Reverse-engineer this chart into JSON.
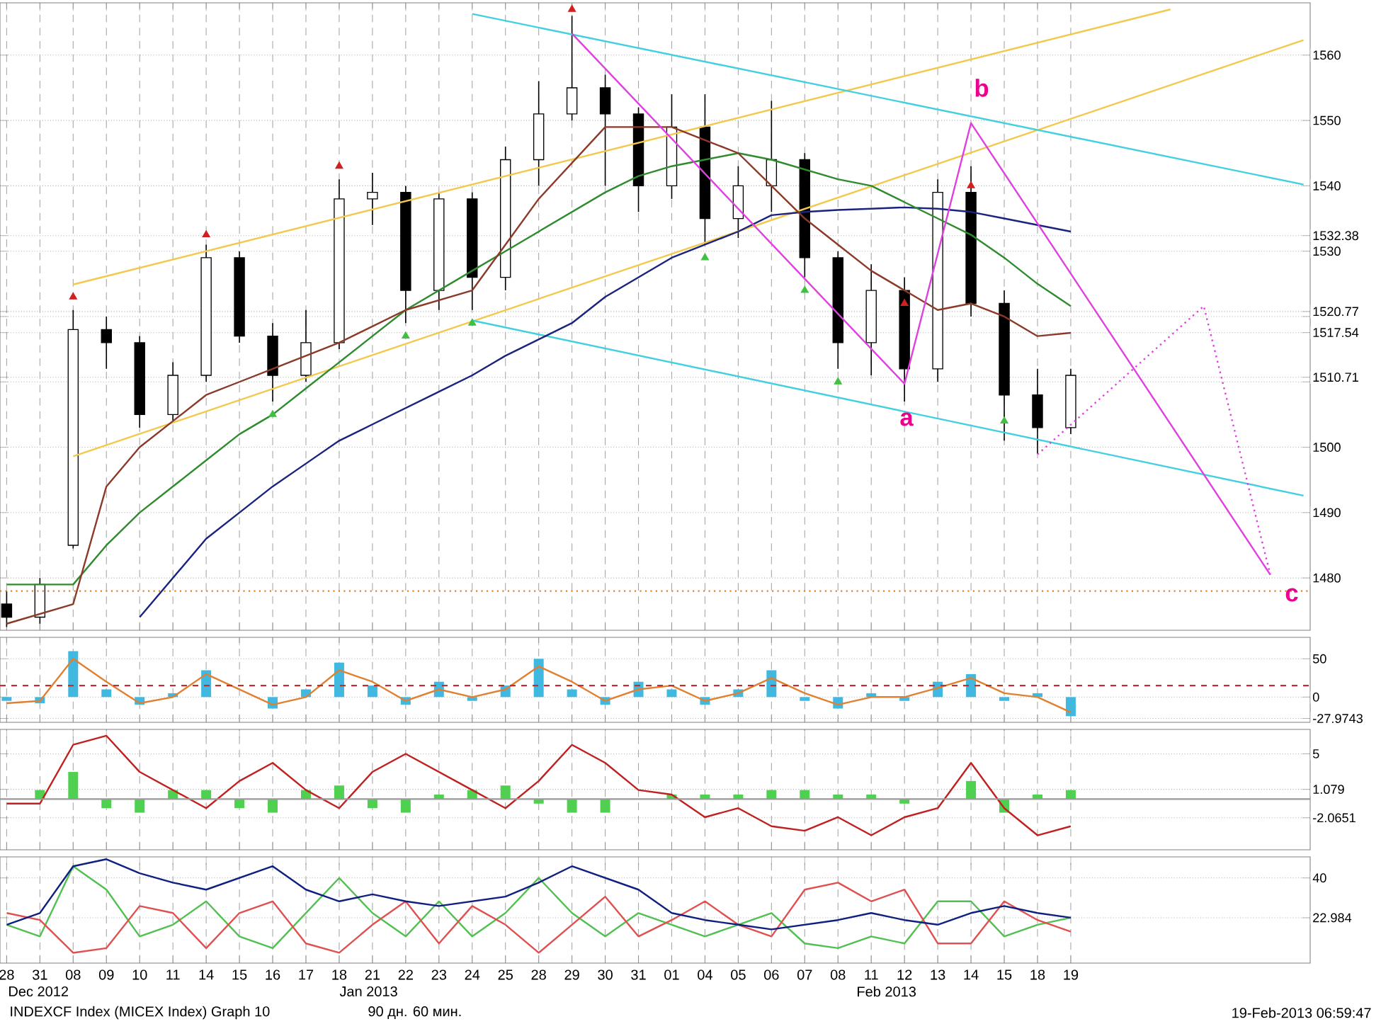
{
  "chart_data": [
    {
      "type": "candlestick",
      "color": "#000000",
      "ylim": [
        1472,
        1568
      ],
      "grid": true,
      "tick_labels": "y",
      "yticks": [
        1480,
        1490,
        1500,
        {
          "value": 1510,
          "label": null
        },
        {
          "value": 1520,
          "label": null
        },
        1530,
        1540,
        1550,
        1560,
        {
          "value": 1532.38,
          "label": "1532.38"
        },
        {
          "value": 1520.77,
          "label": "1520.77"
        },
        {
          "value": 1517.54,
          "label": "1517.54"
        },
        {
          "value": 1510.71,
          "label": "1510.71"
        }
      ],
      "categories": [
        "28",
        "31",
        "08",
        "09",
        "10",
        "11",
        "14",
        "15",
        "16",
        "17",
        "18",
        "21",
        "22",
        "23",
        "24",
        "25",
        "28",
        "29",
        "30",
        "31",
        "01",
        "04",
        "05",
        "06",
        "07",
        "08",
        "11",
        "12",
        "13",
        "14",
        "15",
        "18",
        "19",
        null,
        null,
        null,
        null,
        null,
        null,
        null
      ],
      "ohlc": [
        [
          1476,
          1478,
          1472.5,
          1474
        ],
        [
          1474,
          1480,
          1473,
          1479
        ],
        [
          1485,
          1521,
          1484.5,
          1518
        ],
        [
          1518,
          1520,
          1512,
          1516
        ],
        [
          1516,
          1517,
          1503,
          1505
        ],
        [
          1505,
          1513,
          1504,
          1511
        ],
        [
          1511,
          1531,
          1510,
          1529
        ],
        [
          1529,
          1530,
          1516,
          1517
        ],
        [
          1517,
          1519,
          1507,
          1511
        ],
        [
          1511,
          1521,
          1510,
          1516
        ],
        [
          1516,
          1541,
          1515,
          1538
        ],
        [
          1538,
          1542,
          1534,
          1539
        ],
        [
          1539,
          1540,
          1519,
          1524
        ],
        [
          1524,
          1539,
          1521,
          1538
        ],
        [
          1538,
          1539,
          1521,
          1526
        ],
        [
          1526,
          1546,
          1524,
          1544
        ],
        [
          1544,
          1556,
          1540,
          1551
        ],
        [
          1551,
          1566,
          1550,
          1555
        ],
        [
          1555,
          1557,
          1540,
          1551
        ],
        [
          1551,
          1552,
          1536,
          1540
        ],
        [
          1540,
          1554,
          1538,
          1549
        ],
        [
          1549,
          1554,
          1531,
          1535
        ],
        [
          1535,
          1543,
          1532,
          1540
        ],
        [
          1540,
          1553,
          1536,
          1544
        ],
        [
          1544,
          1545,
          1526,
          1529
        ],
        [
          1529,
          1530,
          1512,
          1516
        ],
        [
          1516,
          1528,
          1511,
          1524
        ],
        [
          1524,
          1526,
          1507,
          1512
        ],
        [
          1512,
          1541,
          1510,
          1539
        ],
        [
          1539,
          1543,
          1520,
          1522
        ],
        [
          1522,
          1524,
          1501,
          1508
        ],
        [
          1508,
          1512,
          1499,
          1503
        ],
        [
          1503,
          1512,
          1502,
          1511
        ],
        null,
        null,
        null,
        null,
        null,
        null,
        null
      ],
      "series": [
        {
          "type": "line",
          "color": "#f2c94c",
          "values": [
            null,
            null,
            1524.9,
            null,
            null,
            null,
            null,
            null,
            null,
            null,
            null,
            null,
            null,
            null,
            null,
            null,
            null,
            null,
            null,
            null,
            null,
            null,
            null,
            null,
            null,
            null,
            null,
            null,
            null,
            null,
            null,
            null,
            null,
            null,
            null,
            1567.0,
            null,
            null,
            null,
            null
          ]
        },
        {
          "type": "line",
          "color": "#f2c94c",
          "values": [
            null,
            null,
            1498.6,
            null,
            null,
            null,
            null,
            null,
            null,
            null,
            null,
            null,
            null,
            null,
            null,
            null,
            null,
            null,
            null,
            null,
            null,
            null,
            null,
            null,
            null,
            null,
            null,
            null,
            null,
            null,
            null,
            null,
            null,
            null,
            null,
            null,
            null,
            null,
            null,
            1562.3
          ]
        },
        {
          "type": "line",
          "color": "#40d0e0",
          "values": [
            null,
            null,
            null,
            null,
            null,
            null,
            null,
            null,
            null,
            null,
            null,
            null,
            null,
            null,
            1566.3,
            null,
            null,
            null,
            null,
            null,
            null,
            null,
            null,
            null,
            null,
            null,
            null,
            null,
            null,
            null,
            null,
            null,
            null,
            null,
            null,
            null,
            null,
            null,
            null,
            1540.2
          ]
        },
        {
          "type": "line",
          "color": "#40d0e0",
          "values": [
            null,
            null,
            null,
            null,
            null,
            null,
            null,
            null,
            null,
            null,
            null,
            null,
            null,
            null,
            1519.4,
            null,
            null,
            null,
            null,
            null,
            null,
            null,
            null,
            null,
            null,
            null,
            null,
            null,
            null,
            null,
            null,
            null,
            null,
            null,
            null,
            null,
            null,
            null,
            null,
            1492.6
          ]
        },
        {
          "type": "line",
          "color": "#1a237e",
          "values": [
            null,
            null,
            null,
            null,
            1474,
            1480,
            1486,
            1490,
            1494,
            1497.5,
            1501,
            1503.5,
            1506,
            1508.5,
            1511,
            1514,
            1516.5,
            1519,
            1523,
            1526,
            1529,
            1531,
            1533,
            1535.5,
            1536,
            1536.3,
            1536.5,
            1536.7,
            1536.5,
            1536,
            1535,
            1534,
            1533,
            null,
            null,
            null,
            null,
            null,
            null,
            null
          ]
        },
        {
          "type": "line",
          "color": "#2e8b2e",
          "values": [
            1479,
            1479,
            1479,
            1485,
            1490,
            1494,
            1498,
            1502,
            1505,
            1509,
            1513,
            1517,
            1521,
            1524,
            1527,
            1530,
            1533,
            1536,
            1539,
            1541.5,
            1543,
            1544,
            1545,
            1544,
            1542.5,
            1541,
            1540,
            1537.5,
            1535,
            1532.5,
            1529,
            1525,
            1521.6,
            null,
            null,
            null,
            null,
            null,
            null,
            null
          ]
        },
        {
          "type": "line",
          "color": "#8b3a2a",
          "values": [
            1473,
            1474.5,
            1476,
            1494,
            1500,
            1504,
            1508,
            1510,
            1512,
            1514,
            1516,
            1518.5,
            1521,
            1522.5,
            1524,
            1531,
            1538,
            1543.5,
            1549,
            1549,
            1549,
            1547,
            1545,
            1540,
            1535,
            1531,
            1527,
            1524,
            1521,
            1522,
            1520,
            1517,
            1517.5,
            null,
            null,
            null,
            null,
            null,
            null,
            null
          ]
        },
        {
          "type": "line",
          "color": "#e040e0",
          "values": [
            null,
            null,
            null,
            null,
            null,
            null,
            null,
            null,
            null,
            null,
            null,
            null,
            null,
            null,
            null,
            null,
            null,
            1563.3,
            null,
            null,
            null,
            null,
            null,
            null,
            null,
            null,
            null,
            1509.7,
            null,
            1549.6,
            null,
            null,
            null,
            null,
            null,
            null,
            null,
            null,
            1480.5,
            null
          ]
        },
        {
          "type": "line",
          "color": "#e040e0",
          "line_style": "dotted",
          "values": [
            null,
            null,
            null,
            null,
            null,
            null,
            null,
            null,
            null,
            null,
            null,
            null,
            null,
            null,
            null,
            null,
            null,
            null,
            null,
            null,
            null,
            null,
            null,
            null,
            null,
            null,
            null,
            null,
            null,
            null,
            null,
            1498.9,
            null,
            null,
            null,
            null,
            1521.6,
            null,
            1480.5,
            null
          ]
        },
        {
          "type": "scatter",
          "marker": "triangle",
          "color": "#d02020",
          "values": [
            null,
            null,
            1523,
            null,
            null,
            null,
            1532.5,
            null,
            null,
            null,
            1543,
            null,
            null,
            null,
            null,
            null,
            null,
            1567,
            null,
            null,
            null,
            null,
            null,
            null,
            null,
            null,
            null,
            1522,
            null,
            1540,
            null,
            null,
            null,
            null,
            null,
            null,
            null,
            null,
            null,
            null
          ]
        },
        {
          "type": "scatter",
          "marker": "triangle",
          "color": "#40c040",
          "values": [
            null,
            null,
            null,
            null,
            null,
            null,
            null,
            null,
            1505,
            null,
            null,
            null,
            1517,
            null,
            1519,
            null,
            null,
            null,
            null,
            null,
            null,
            1529,
            null,
            null,
            1524,
            1510,
            null,
            null,
            null,
            null,
            1504,
            null,
            null,
            null,
            null,
            null,
            null,
            null,
            null,
            null
          ]
        }
      ],
      "ref_lines": [
        {
          "axis": "y",
          "value": 1478,
          "color": "#e08020",
          "line_style": "dotted"
        }
      ],
      "annotations": [
        "a",
        "b",
        "c"
      ]
    },
    {
      "type": "bar",
      "ylim": [
        -33,
        78
      ],
      "yticks": [
        0,
        50,
        -27.9743
      ],
      "grid": true,
      "tick_labels": "y",
      "categories": [
        "28",
        "31",
        "08",
        "09",
        "10",
        "11",
        "14",
        "15",
        "16",
        "17",
        "18",
        "21",
        "22",
        "23",
        "24",
        "25",
        "28",
        "29",
        "30",
        "31",
        "01",
        "04",
        "05",
        "06",
        "07",
        "08",
        "11",
        "12",
        "13",
        "14",
        "15",
        "18",
        "19",
        null,
        null,
        null,
        null,
        null,
        null,
        null
      ],
      "series": [
        {
          "color": "#40b8e0",
          "values": [
            -5,
            -8,
            60,
            10,
            -10,
            5,
            35,
            0,
            -15,
            10,
            45,
            15,
            -10,
            20,
            -5,
            15,
            50,
            10,
            -10,
            20,
            10,
            -10,
            10,
            35,
            -5,
            -15,
            5,
            -5,
            20,
            30,
            -5,
            5,
            -25,
            null,
            null,
            null,
            null,
            null,
            null,
            null
          ]
        },
        {
          "type": "line",
          "color": "#e08030",
          "values": [
            -8,
            -5,
            50,
            20,
            -8,
            0,
            30,
            10,
            -10,
            0,
            35,
            20,
            -5,
            10,
            0,
            10,
            40,
            20,
            -5,
            10,
            15,
            -5,
            5,
            25,
            5,
            -10,
            0,
            0,
            12,
            25,
            5,
            0,
            -20,
            null,
            null,
            null,
            null,
            null,
            null,
            null
          ]
        }
      ],
      "ref_lines": [
        {
          "axis": "y",
          "value": 15,
          "color": "#c03030",
          "line_style": "dashed"
        }
      ]
    },
    {
      "type": "bar",
      "ylim": [
        -5.6,
        7.7
      ],
      "yticks": [
        5,
        1.079,
        -2.0651
      ],
      "grid": true,
      "tick_labels": "y",
      "categories": [
        "28",
        "31",
        "08",
        "09",
        "10",
        "11",
        "14",
        "15",
        "16",
        "17",
        "18",
        "21",
        "22",
        "23",
        "24",
        "25",
        "28",
        "29",
        "30",
        "31",
        "01",
        "04",
        "05",
        "06",
        "07",
        "08",
        "11",
        "12",
        "13",
        "14",
        "15",
        "18",
        "19",
        null,
        null,
        null,
        null,
        null,
        null,
        null
      ],
      "series": [
        {
          "color": "#50d050",
          "values": [
            0,
            1,
            3,
            -1,
            -1.5,
            1,
            1,
            -1,
            -1.5,
            1,
            1.5,
            -1,
            -1.5,
            0.5,
            1,
            1.5,
            -0.5,
            -1.5,
            -1.5,
            0,
            0.5,
            0.5,
            0.5,
            1,
            1,
            0.5,
            0.5,
            -0.5,
            0,
            2,
            -1.5,
            0.5,
            1,
            null,
            null,
            null,
            null,
            null,
            null,
            null
          ]
        },
        {
          "type": "line",
          "color": "#c02020",
          "values": [
            -0.5,
            -0.5,
            6,
            7,
            3,
            1,
            -1,
            2,
            4,
            1,
            -1,
            3,
            5,
            3,
            1,
            -1,
            2,
            6,
            4,
            1,
            0.5,
            -2,
            -1,
            -3,
            -3.5,
            -2,
            -4,
            -2,
            -1,
            4,
            -1,
            -4,
            -3,
            null,
            null,
            null,
            null,
            null,
            null,
            null
          ]
        }
      ],
      "ref_lines": [
        {
          "axis": "y",
          "value": 0,
          "color": "#999999",
          "line_style": "solid"
        }
      ]
    },
    {
      "type": "line",
      "ylim": [
        3.6,
        49
      ],
      "yticks": [
        40,
        22.984
      ],
      "grid": true,
      "categories": [
        "28",
        "31",
        "08",
        "09",
        "10",
        "11",
        "14",
        "15",
        "16",
        "17",
        "18",
        "21",
        "22",
        "23",
        "24",
        "25",
        "28",
        "29",
        "30",
        "31",
        "01",
        "04",
        "05",
        "06",
        "07",
        "08",
        "11",
        "12",
        "13",
        "14",
        "15",
        "18",
        "19",
        null,
        null,
        null,
        null,
        null,
        null,
        null
      ],
      "series": [
        {
          "color": "#50c050",
          "values": [
            20,
            15,
            45,
            35,
            15,
            20,
            30,
            15,
            10,
            25,
            40,
            25,
            15,
            30,
            15,
            25,
            40,
            25,
            15,
            25,
            20,
            15,
            20,
            25,
            12,
            10,
            15,
            12,
            30,
            30,
            15,
            20,
            23,
            null,
            null,
            null,
            null,
            null,
            null,
            null
          ]
        },
        {
          "color": "#e05050",
          "values": [
            25,
            22,
            8,
            10,
            28,
            25,
            10,
            25,
            30,
            12,
            8,
            20,
            30,
            12,
            28,
            20,
            8,
            20,
            32,
            15,
            22,
            30,
            20,
            15,
            35,
            38,
            30,
            35,
            12,
            12,
            30,
            22,
            17,
            null,
            null,
            null,
            null,
            null,
            null,
            null
          ]
        },
        {
          "color": "#102080",
          "values": [
            20,
            25,
            45,
            48,
            42,
            38,
            35,
            40,
            45,
            35,
            30,
            33,
            30,
            28,
            30,
            32,
            38,
            45,
            40,
            35,
            25,
            22,
            20,
            18,
            20,
            22,
            25,
            22,
            20,
            25,
            28,
            25,
            23,
            null,
            null,
            null,
            null,
            null,
            null,
            null
          ]
        }
      ],
      "annotations": [
        "Dec 2012",
        "Jan 2013",
        "Feb 2013",
        "INDEXCF Index (MICEX Index) Graph 10",
        "90 дн. 60 мин.",
        "19-Feb-2013 06:59:47"
      ]
    }
  ]
}
